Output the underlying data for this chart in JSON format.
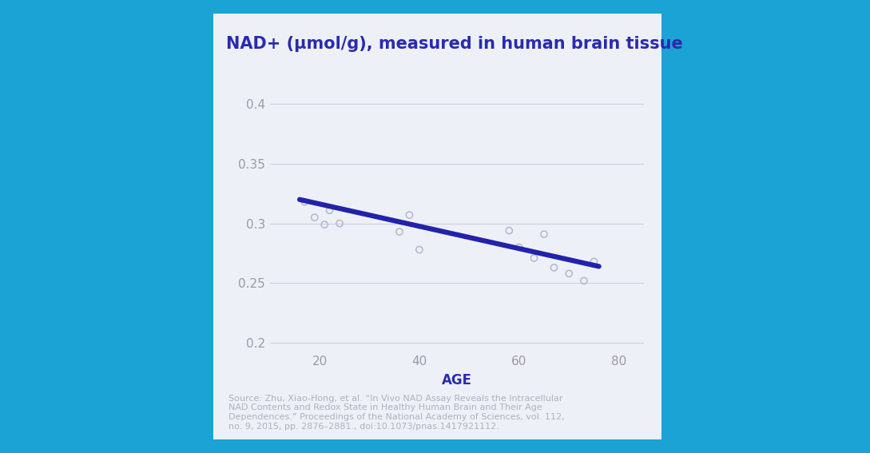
{
  "title": "NAD+ (μmol/g), measured in human brain tissue",
  "xlabel": "AGE",
  "panel_bg": "#eef0f7",
  "title_color": "#2a2ab0",
  "xlabel_color": "#2a2ab0",
  "ytick_color": "#999aaa",
  "xtick_color": "#999aaa",
  "grid_color": "#d0d2e0",
  "line_color": "#2222aa",
  "scatter_color": "#b0b2cc",
  "ylim": [
    0.195,
    0.415
  ],
  "xlim": [
    10,
    85
  ],
  "yticks": [
    0.2,
    0.25,
    0.3,
    0.35,
    0.4
  ],
  "xticks": [
    20,
    40,
    60,
    80
  ],
  "scatter_x": [
    17,
    19,
    21,
    22,
    24,
    36,
    38,
    40,
    58,
    60,
    63,
    65,
    67,
    70,
    73,
    75
  ],
  "scatter_y": [
    0.318,
    0.305,
    0.299,
    0.311,
    0.3,
    0.293,
    0.307,
    0.278,
    0.294,
    0.28,
    0.271,
    0.291,
    0.263,
    0.258,
    0.252,
    0.268
  ],
  "trend_x": [
    16,
    76
  ],
  "trend_y": [
    0.32,
    0.264
  ],
  "source_text": "Source: Zhu, Xiao-Hong, et al. “In Vivo NAD Assay Reveals the Intracellular\nNAD Contents and Redox State in Healthy Human Brain and Their Age\nDependences.” Proceedings of the National Academy of Sciences, vol. 112,\nno. 9, 2015, pp. 2876–2881., doi:10.1073/pnas.1417921112.",
  "title_fontsize": 15,
  "xlabel_fontsize": 12,
  "tick_fontsize": 11,
  "source_fontsize": 8,
  "outer_bg": "#1aa3d4",
  "card_bg": "#eef0f7"
}
